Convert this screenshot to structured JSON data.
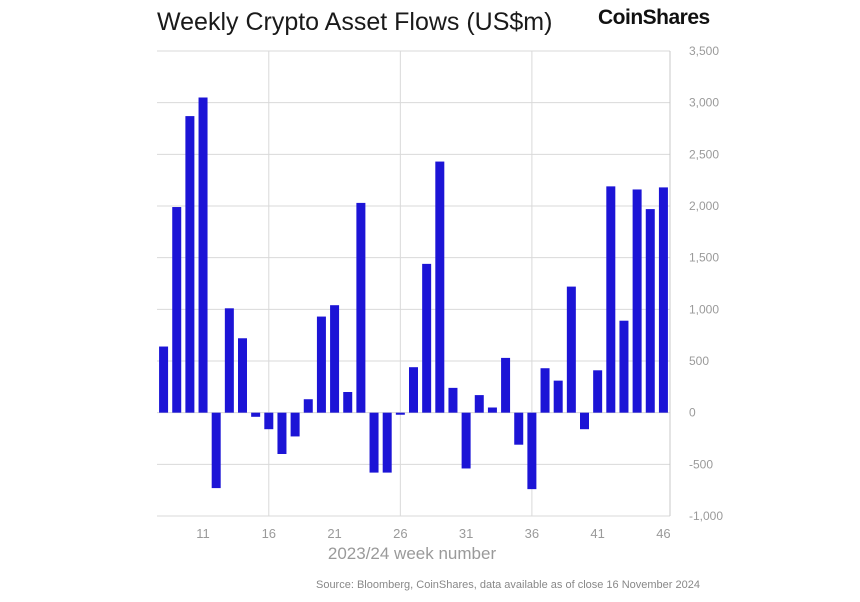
{
  "title": "Weekly Crypto Asset Flows (US$m)",
  "brand": "CoinShares",
  "source": "Source: Bloomberg, CoinShares, data available as of close 16 November 2024",
  "colors": {
    "bar": "#1c14d6",
    "grid": "#d9d9d9",
    "axis": "#c8c8c8"
  },
  "chart_data": {
    "type": "bar",
    "title": "Weekly Crypto Asset Flows (US$m)",
    "xlabel": "2023/24 week number",
    "ylabel": "",
    "ylim": [
      -1000,
      3500
    ],
    "yticks": [
      3500,
      3000,
      2500,
      2000,
      1500,
      1000,
      500,
      0,
      -500,
      -1000
    ],
    "ytick_labels": [
      "3,500",
      "3,000",
      "2,500",
      "2,000",
      "1,500",
      "1,000",
      "500",
      "0",
      "-500",
      "-1,000"
    ],
    "xticks": [
      11,
      16,
      21,
      26,
      31,
      36,
      41,
      46
    ],
    "grid_x_weeks": [
      16,
      26,
      36
    ],
    "grid": true,
    "weeks": [
      8,
      9,
      10,
      11,
      12,
      13,
      14,
      15,
      16,
      17,
      18,
      19,
      20,
      21,
      22,
      23,
      24,
      25,
      26,
      27,
      28,
      29,
      30,
      31,
      32,
      33,
      34,
      35,
      36,
      37,
      38,
      39,
      40,
      41,
      42,
      43,
      44,
      45,
      46
    ],
    "values": [
      640,
      1990,
      2870,
      3050,
      -730,
      1010,
      720,
      -40,
      -160,
      -400,
      -230,
      130,
      930,
      1040,
      200,
      2030,
      -580,
      -580,
      -20,
      440,
      1440,
      2430,
      240,
      -540,
      170,
      50,
      530,
      -310,
      -740,
      430,
      310,
      1220,
      -160,
      410,
      2190,
      890,
      2160,
      1970,
      2180
    ]
  }
}
